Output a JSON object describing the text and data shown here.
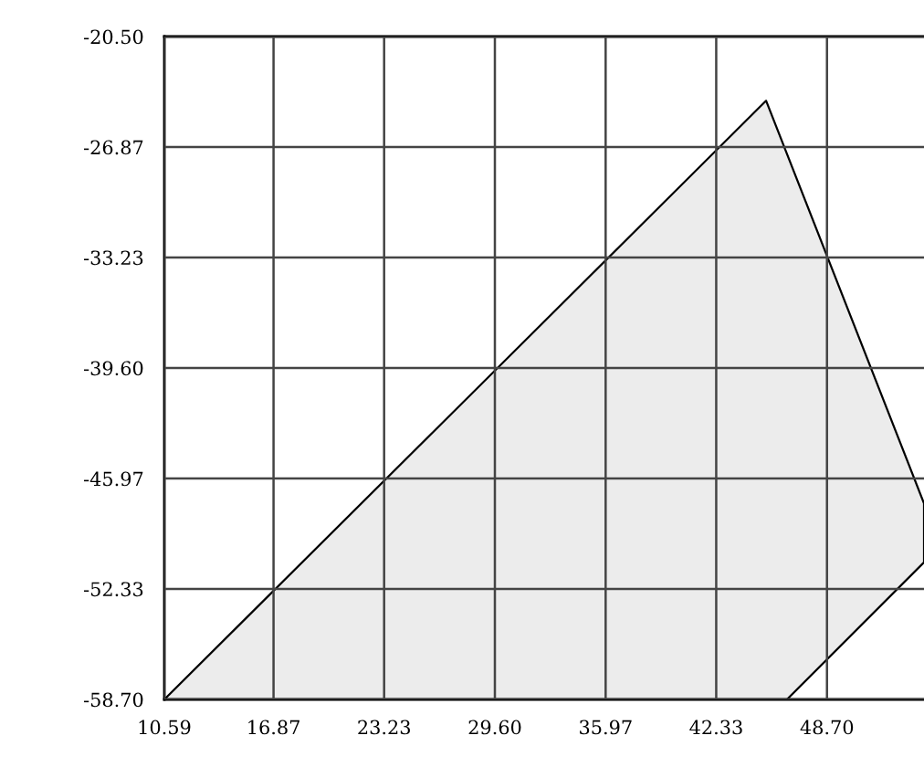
{
  "chart_data": {
    "type": "area",
    "x": [
      10.59,
      45.2,
      54.28,
      54.28,
      46.4,
      10.59
    ],
    "series": [
      {
        "color": "#ececec",
        "values": [
          -58.7,
          -24.2,
          -47.4,
          -50.8,
          -58.7,
          -58.7
        ]
      }
    ],
    "xlim": [
      10.59,
      54.28
    ],
    "ylim": [
      -58.7,
      -20.5
    ],
    "xticks": [
      {
        "value": 10.59,
        "label": "10.59"
      },
      {
        "value": 16.87,
        "label": "16.87"
      },
      {
        "value": 23.23,
        "label": "23.23"
      },
      {
        "value": 29.6,
        "label": "29.60"
      },
      {
        "value": 35.97,
        "label": "35.97"
      },
      {
        "value": 42.33,
        "label": "42.33"
      },
      {
        "value": 48.7,
        "label": "48.70"
      }
    ],
    "yticks": [
      {
        "value": -58.7,
        "label": "-58.70"
      },
      {
        "value": -52.33,
        "label": "-52.33"
      },
      {
        "value": -45.97,
        "label": "-45.97"
      },
      {
        "value": -39.6,
        "label": "-39.60"
      },
      {
        "value": -33.23,
        "label": "-33.23"
      },
      {
        "value": -26.87,
        "label": "-26.87"
      },
      {
        "value": -20.5,
        "label": "-20.50"
      }
    ],
    "grid": true
  }
}
